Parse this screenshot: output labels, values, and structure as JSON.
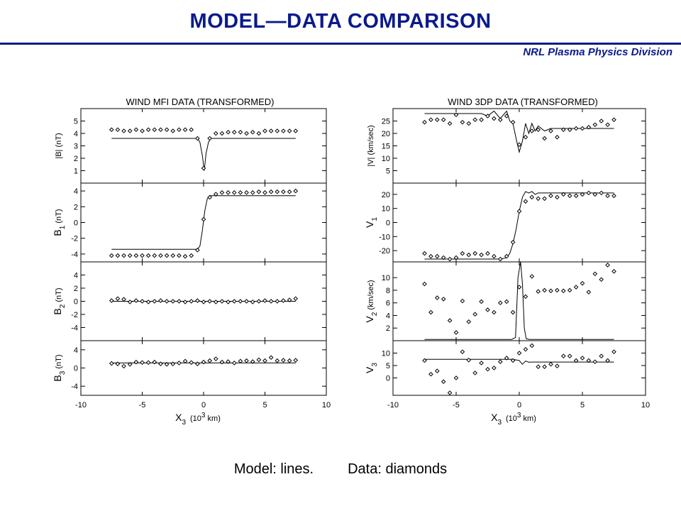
{
  "slide": {
    "title": "MODEL—DATA  COMPARISON",
    "division": "NRL Plasma Physics Division",
    "caption_model": "Model: lines.",
    "caption_data": "Data: diamonds",
    "accent_color": "#0a1a8c"
  },
  "chart_data": [
    {
      "type": "scatter",
      "title": "WIND MFI DATA  (TRANSFORMED)",
      "xlabel": "X3  (10^3 km)",
      "xlabel_main": "X",
      "xlabel_sub": "3",
      "xlabel_unit_pre": "(10",
      "xlabel_unit_sup": "3",
      "xlabel_unit_post": " km)",
      "xlim": [
        -10,
        10
      ],
      "xticks": [
        -10,
        -5,
        0,
        5,
        10
      ],
      "legend": "none",
      "panels": [
        {
          "ylabel": "|B| (nT)",
          "ylim": [
            0,
            6
          ],
          "yticks": [
            1,
            2,
            3,
            4,
            5
          ],
          "data": {
            "x": [
              -7.5,
              -7,
              -6.5,
              -6,
              -5.5,
              -5,
              -4.5,
              -4,
              -3.5,
              -3,
              -2.5,
              -2,
              -1.5,
              -1,
              -0.5,
              0,
              0.5,
              1,
              1.5,
              2,
              2.5,
              3,
              3.5,
              4,
              4.5,
              5,
              5.5,
              6,
              6.5,
              7,
              7.5
            ],
            "y": [
              4.3,
              4.3,
              4.2,
              4.2,
              4.3,
              4.2,
              4.3,
              4.3,
              4.3,
              4.3,
              4.2,
              4.3,
              4.3,
              4.3,
              3.6,
              1.2,
              3.6,
              4.0,
              4.0,
              4.1,
              4.1,
              4.1,
              4.0,
              4.1,
              4.0,
              4.2,
              4.2,
              4.2,
              4.2,
              4.2,
              4.2
            ]
          },
          "model": {
            "x": [
              -7.5,
              -0.5,
              -0.3,
              -0.1,
              0.05,
              0.2,
              0.4,
              0.6,
              7.5
            ],
            "y": [
              3.6,
              3.6,
              3.3,
              2.2,
              1.0,
              2.4,
              3.3,
              3.6,
              3.6
            ]
          }
        },
        {
          "ylabel": "B1 (nT)",
          "ylabel_main": "B",
          "ylabel_sub": "1",
          "ylabel_unit": " (nT)",
          "ylim": [
            -5,
            5
          ],
          "yticks": [
            -4,
            -2,
            0,
            2,
            4
          ],
          "data": {
            "x": [
              -7.5,
              -7,
              -6.5,
              -6,
              -5.5,
              -5,
              -4.5,
              -4,
              -3.5,
              -3,
              -2.5,
              -2,
              -1.5,
              -1,
              -0.5,
              0,
              0.5,
              1,
              1.5,
              2,
              2.5,
              3,
              3.5,
              4,
              4.5,
              5,
              5.5,
              6,
              6.5,
              7,
              7.5
            ],
            "y": [
              -4.2,
              -4.2,
              -4.2,
              -4.2,
              -4.2,
              -4.2,
              -4.2,
              -4.2,
              -4.2,
              -4.2,
              -4.2,
              -4.2,
              -4.3,
              -4.2,
              -3.5,
              0.4,
              3.2,
              3.6,
              3.8,
              3.8,
              3.8,
              3.8,
              3.8,
              3.8,
              3.9,
              3.8,
              3.9,
              3.9,
              3.9,
              3.9,
              4.0
            ]
          },
          "model": {
            "x": [
              -7.5,
              -0.5,
              -0.3,
              -0.1,
              0.1,
              0.3,
              0.5,
              7.5
            ],
            "y": [
              -3.4,
              -3.4,
              -3.0,
              -1.0,
              1.5,
              3.0,
              3.4,
              3.4
            ]
          }
        },
        {
          "ylabel": "B2 (nT)",
          "ylabel_main": "B",
          "ylabel_sub": "2",
          "ylabel_unit": " (nT)",
          "ylim": [
            -6,
            6
          ],
          "yticks": [
            -4,
            -2,
            0,
            2,
            4
          ],
          "data": {
            "x": [
              -7.5,
              -7,
              -6.5,
              -6,
              -5.5,
              -5,
              -4.5,
              -4,
              -3.5,
              -3,
              -2.5,
              -2,
              -1.5,
              -1,
              -0.5,
              0,
              0.5,
              1,
              1.5,
              2,
              2.5,
              3,
              3.5,
              4,
              4.5,
              5,
              5.5,
              6,
              6.5,
              7,
              7.5
            ],
            "y": [
              0.1,
              0.4,
              0.3,
              -0.1,
              0.1,
              0.0,
              -0.1,
              0.0,
              0.1,
              0.0,
              0.0,
              0.0,
              -0.1,
              0.0,
              0.1,
              -0.1,
              0.0,
              -0.1,
              0.0,
              -0.1,
              0.0,
              0.0,
              0.0,
              -0.1,
              0.0,
              0.1,
              0.0,
              0.0,
              0.1,
              0.2,
              0.4
            ]
          },
          "model": {
            "x": [
              -7.5,
              7.5
            ],
            "y": [
              0.0,
              0.0
            ]
          }
        },
        {
          "ylabel": "B3 (nT)",
          "ylabel_main": "B",
          "ylabel_sub": "3",
          "ylabel_unit": " (nT)",
          "ylim": [
            -6,
            6
          ],
          "yticks": [
            -4,
            0,
            4
          ],
          "data": {
            "x": [
              -7.5,
              -7,
              -6.5,
              -6,
              -5.5,
              -5,
              -4.5,
              -4,
              -3.5,
              -3,
              -2.5,
              -2,
              -1.5,
              -1,
              -0.5,
              0,
              0.5,
              1,
              1.5,
              2,
              2.5,
              3,
              3.5,
              4,
              4.5,
              5,
              5.5,
              6,
              6.5,
              7,
              7.5
            ],
            "y": [
              1.0,
              0.9,
              0.4,
              0.8,
              1.3,
              1.2,
              1.2,
              1.3,
              0.9,
              0.8,
              0.9,
              1.1,
              1.5,
              1.2,
              0.9,
              1.3,
              1.6,
              2.0,
              1.3,
              1.4,
              1.1,
              1.5,
              1.6,
              1.4,
              1.8,
              1.6,
              2.3,
              1.6,
              1.7,
              1.6,
              1.7
            ]
          },
          "model": {
            "x": [
              -7.5,
              7.5
            ],
            "y": [
              1.1,
              1.1
            ]
          }
        }
      ]
    },
    {
      "type": "scatter",
      "title": "WIND 3DP DATA  (TRANSFORMED)",
      "xlabel": "X3  (10^3 km)",
      "xlabel_main": "X",
      "xlabel_sub": "3",
      "xlabel_unit_pre": "(10",
      "xlabel_unit_sup": "3",
      "xlabel_unit_post": " km)",
      "xlim": [
        -10,
        10
      ],
      "xticks": [
        -10,
        -5,
        0,
        5,
        10
      ],
      "legend": "none",
      "panels": [
        {
          "ylabel": "|V| (km/sec)",
          "ylim": [
            0,
            30
          ],
          "yticks": [
            5,
            10,
            15,
            20,
            25
          ],
          "data": {
            "x": [
              -7.5,
              -7,
              -6.5,
              -6,
              -5.5,
              -5,
              -4.5,
              -4,
              -3.5,
              -3,
              -2.5,
              -2,
              -1.5,
              -1,
              -0.5,
              0,
              0.5,
              1,
              1.5,
              2,
              2.5,
              3,
              3.5,
              4,
              4.5,
              5,
              5.5,
              6,
              6.5,
              7,
              7.5
            ],
            "y": [
              24.5,
              25.5,
              25.5,
              25.5,
              24.0,
              27.5,
              24.5,
              24.0,
              25.5,
              25.5,
              27.0,
              26.0,
              25.5,
              27.0,
              24.5,
              15.5,
              18.5,
              21.0,
              21.5,
              18.0,
              21.0,
              18.5,
              21.5,
              21.5,
              22.0,
              22.0,
              22.5,
              23.5,
              25.0,
              23.5,
              25.5
            ]
          },
          "model": {
            "x": [
              -7.5,
              -3,
              -2.5,
              -2,
              -1.5,
              -1,
              -0.75,
              -0.5,
              -0.25,
              0,
              0.25,
              0.5,
              0.75,
              1,
              1.25,
              1.5,
              2,
              2.5,
              7.5
            ],
            "y": [
              28.0,
              28.0,
              27.0,
              29.0,
              26.0,
              29.0,
              25.0,
              24.0,
              18.0,
              12.5,
              17.0,
              24.0,
              20.0,
              24.0,
              21.0,
              23.0,
              21.0,
              22.0,
              22.0
            ]
          }
        },
        {
          "ylabel": "V1",
          "ylabel_main": "V",
          "ylabel_sub": "1",
          "ylabel_unit": "",
          "ylim": [
            -28,
            28
          ],
          "yticks": [
            -20,
            -10,
            0,
            10,
            20
          ],
          "data": {
            "x": [
              -7.5,
              -7,
              -6.5,
              -6,
              -5.5,
              -5,
              -4.5,
              -4,
              -3.5,
              -3,
              -2.5,
              -2,
              -1.5,
              -1,
              -0.5,
              0,
              0.5,
              1,
              1.5,
              2,
              2.5,
              3,
              3.5,
              4,
              4.5,
              5,
              5.5,
              6,
              6.5,
              7,
              7.5
            ],
            "y": [
              -22.0,
              -24.0,
              -24.0,
              -25.0,
              -26.0,
              -25.0,
              -22.0,
              -23.0,
              -22.0,
              -23.0,
              -22.0,
              -24.0,
              -26.0,
              -24.0,
              -14.0,
              8.0,
              15.0,
              18.0,
              17.0,
              17.0,
              19.0,
              18.0,
              20.0,
              19.0,
              19.0,
              20.0,
              21.0,
              20.0,
              21.0,
              19.0,
              19.0
            ]
          },
          "model": {
            "x": [
              -7.5,
              -1.5,
              -1,
              -0.75,
              -0.5,
              -0.25,
              0,
              0.25,
              0.5,
              0.75,
              1,
              1.25,
              1.5,
              2,
              7.5
            ],
            "y": [
              -26.0,
              -26.0,
              -25.0,
              -22.0,
              -15.0,
              -5.0,
              8.0,
              18.0,
              22.0,
              21.0,
              22.0,
              20.0,
              21.0,
              21.0,
              21.0
            ]
          }
        },
        {
          "ylabel": "V2 (km/sec)",
          "ylabel_main": "V",
          "ylabel_sub": "2",
          "ylabel_unit": " (km/sec)",
          "ylim": [
            0,
            12.5
          ],
          "yticks": [
            2,
            4,
            6,
            8,
            10
          ],
          "data": {
            "x": [
              -7.5,
              -7,
              -6.5,
              -6,
              -5.5,
              -5,
              -4.5,
              -4,
              -3.5,
              -3,
              -2.5,
              -2,
              -1.5,
              -1,
              -0.5,
              0,
              0.5,
              1,
              1.5,
              2,
              2.5,
              3,
              3.5,
              4,
              4.5,
              5,
              5.5,
              6,
              6.5,
              7,
              7.5
            ],
            "y": [
              9.0,
              4.5,
              6.8,
              6.6,
              3.2,
              1.3,
              6.3,
              3.0,
              4.2,
              6.2,
              4.9,
              4.5,
              6.0,
              6.2,
              4.5,
              8.5,
              7.0,
              10.2,
              7.8,
              8.0,
              7.9,
              8.0,
              7.9,
              8.0,
              8.5,
              9.1,
              7.7,
              10.6,
              9.7,
              12.0,
              11.0
            ]
          },
          "model": {
            "x": [
              -7.5,
              -0.6,
              -0.3,
              -0.1,
              0.1,
              0.25,
              0.4,
              0.55,
              0.8,
              7.5
            ],
            "y": [
              0.2,
              0.2,
              0.5,
              10.0,
              12.5,
              9.0,
              2.0,
              0.3,
              0.2,
              0.2
            ]
          }
        },
        {
          "ylabel": "V3",
          "ylabel_main": "V",
          "ylabel_sub": "3",
          "ylabel_unit": "",
          "ylim": [
            -7,
            15
          ],
          "yticks": [
            0,
            5,
            10
          ],
          "data": {
            "x": [
              -7.5,
              -7,
              -6.5,
              -6,
              -5.5,
              -5,
              -4.5,
              -4,
              -3.5,
              -3,
              -2.5,
              -2,
              -1.5,
              -1,
              -0.5,
              0,
              0.5,
              1,
              1.5,
              2,
              2.5,
              3,
              3.5,
              4,
              4.5,
              5,
              5.5,
              6,
              6.5,
              7,
              7.5
            ],
            "y": [
              7.0,
              1.5,
              2.8,
              -1.5,
              -6.0,
              0.0,
              10.5,
              7.2,
              2.0,
              6.0,
              3.5,
              4.0,
              6.5,
              8.0,
              7.0,
              10.0,
              11.5,
              13.0,
              4.5,
              4.5,
              5.5,
              4.8,
              8.8,
              8.8,
              7.0,
              8.0,
              7.0,
              6.5,
              8.8,
              7.0,
              10.5
            ]
          },
          "model": {
            "x": [
              -7.5,
              -0.5,
              0,
              0.25,
              0.5,
              0.75,
              1,
              7.5
            ],
            "y": [
              7.5,
              7.5,
              7.0,
              5.5,
              6.8,
              6.3,
              6.4,
              6.4
            ]
          }
        }
      ]
    }
  ]
}
